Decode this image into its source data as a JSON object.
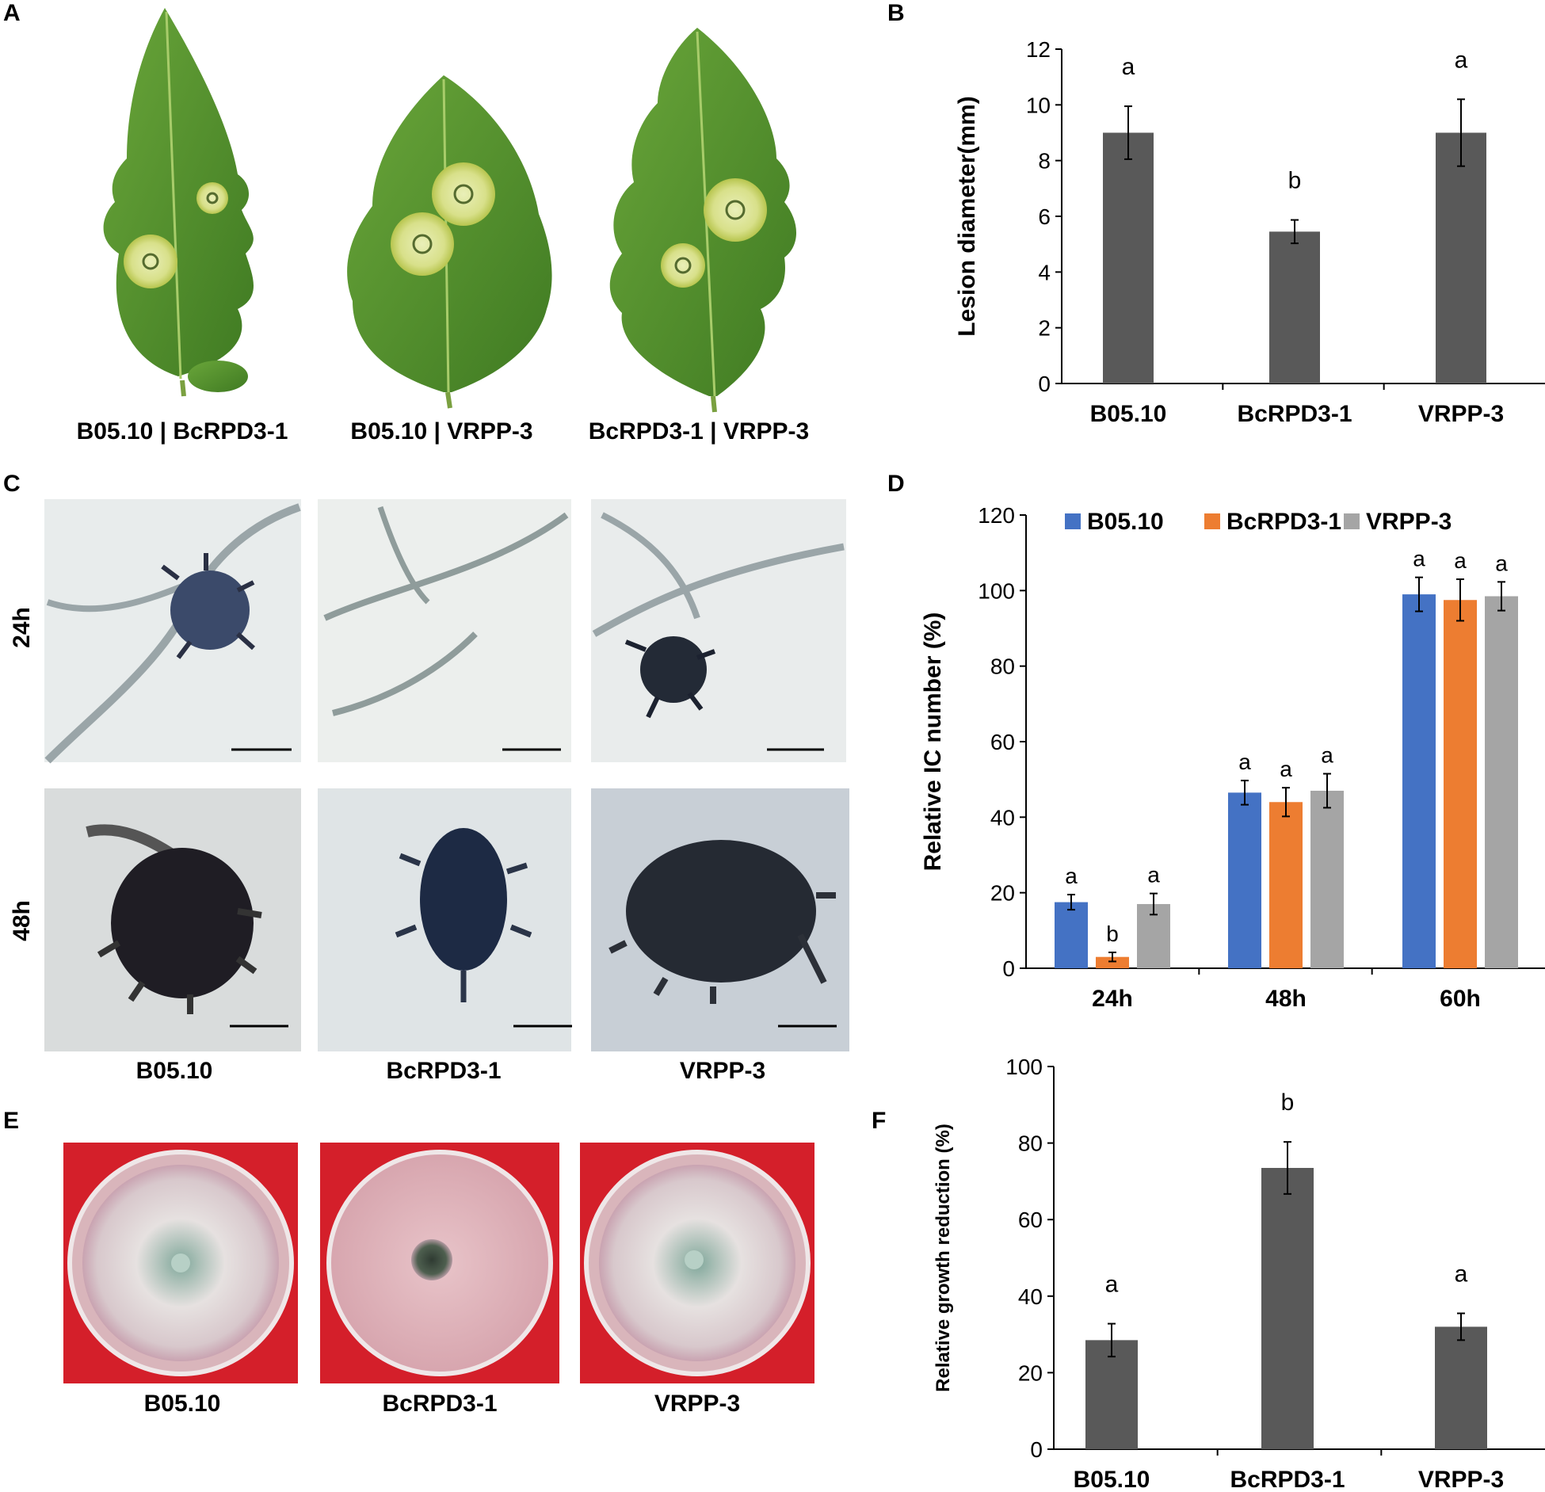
{
  "panel_labels": {
    "A": "A",
    "B": "B",
    "C": "C",
    "D": "D",
    "E": "E",
    "F": "F"
  },
  "panelA": {
    "captions": [
      "B05.10 | BcRPD3-1",
      "B05.10 | VRPP-3",
      "BcRPD3-1 | VRPP-3"
    ]
  },
  "panelC": {
    "row_labels": [
      "24h",
      "48h"
    ],
    "captions": [
      "B05.10",
      "BcRPD3-1",
      "VRPP-3"
    ]
  },
  "panelE": {
    "captions": [
      "B05.10",
      "BcRPD3-1",
      "VRPP-3"
    ],
    "background_color": "#d41f2a"
  },
  "colors": {
    "bar_dark": "#595959",
    "series_b0510": "#4472c4",
    "series_bcrpd3": "#ed7d31",
    "series_vrpp3": "#a5a5a5"
  },
  "chart_data": [
    {
      "id": "B",
      "type": "bar",
      "categories": [
        "B05.10",
        "BcRPD3-1",
        "VRPP-3"
      ],
      "values": [
        9.0,
        5.45,
        9.0
      ],
      "errors": [
        0.95,
        0.42,
        1.2
      ],
      "significance": [
        "a",
        "b",
        "a"
      ],
      "ylabel": "Lesion diameter(mm)",
      "ylim": [
        0,
        12
      ],
      "yticks": [
        "0",
        "2",
        "4",
        "6",
        "8",
        "10",
        "12"
      ],
      "grid": false
    },
    {
      "id": "D",
      "type": "bar",
      "categories": [
        "24h",
        "48h",
        "60h"
      ],
      "series": [
        {
          "name": "B05.10",
          "values": [
            17.5,
            46.5,
            99.0
          ],
          "errors": [
            2.0,
            3.2,
            4.5
          ],
          "significance": [
            "a",
            "a",
            "a"
          ]
        },
        {
          "name": "BcRPD3-1",
          "values": [
            3.0,
            44.0,
            97.5
          ],
          "errors": [
            1.2,
            3.8,
            5.5
          ],
          "significance": [
            "b",
            "a",
            "a"
          ]
        },
        {
          "name": "VRPP-3",
          "values": [
            17.0,
            47.0,
            98.5
          ],
          "errors": [
            2.8,
            4.5,
            3.8
          ],
          "significance": [
            "a",
            "a",
            "a"
          ]
        }
      ],
      "ylabel": "Relative IC number  (%)",
      "ylim": [
        0,
        120
      ],
      "yticks": [
        "0",
        "20",
        "40",
        "60",
        "80",
        "100",
        "120"
      ],
      "legend": "top",
      "grid": false
    },
    {
      "id": "F",
      "type": "bar",
      "categories": [
        "B05.10",
        "BcRPD3-1",
        "VRPP-3"
      ],
      "values": [
        28.5,
        73.5,
        32.0
      ],
      "errors": [
        4.3,
        6.8,
        3.5
      ],
      "significance": [
        "a",
        "b",
        "a"
      ],
      "ylabel": "Relative growth reduction (%)",
      "ylim": [
        0,
        100
      ],
      "yticks": [
        "0",
        "20",
        "40",
        "60",
        "80",
        "100"
      ],
      "grid": false
    }
  ]
}
